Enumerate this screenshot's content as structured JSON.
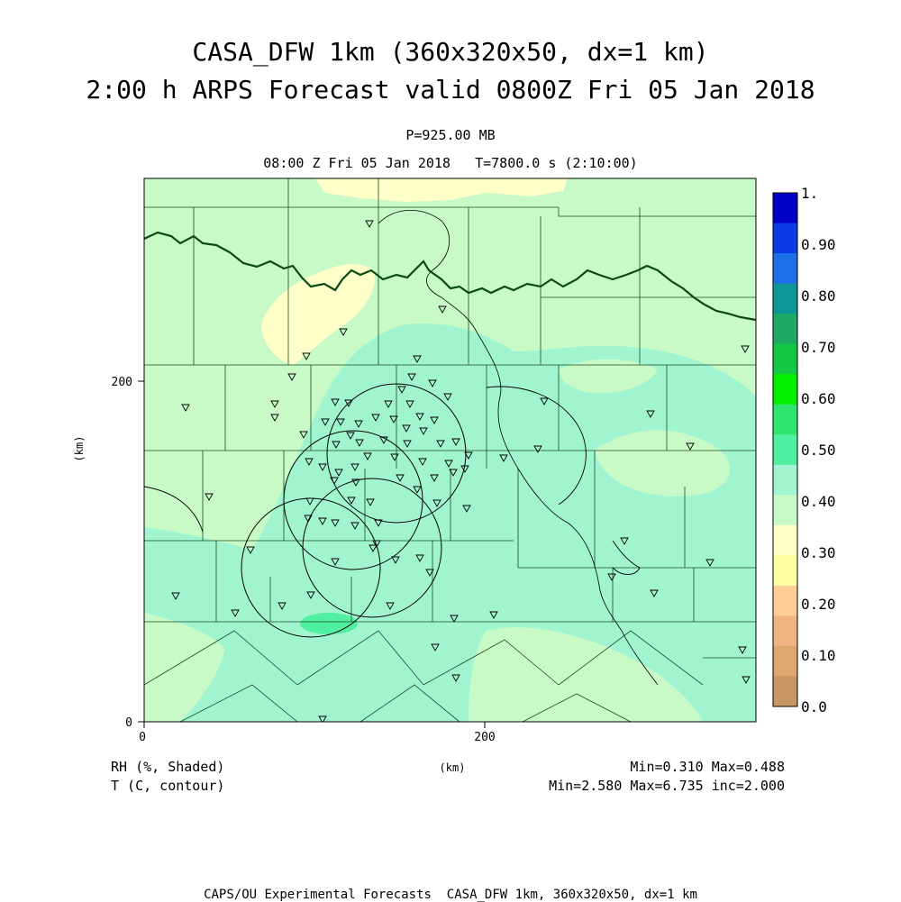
{
  "title": {
    "line1": "CASA_DFW 1km (360x320x50, dx=1 km)",
    "line2": "2:00 h ARPS Forecast valid 0800Z Fri 05 Jan 2018"
  },
  "subtitle": {
    "level": "P=925.00 MB",
    "time": "08:00 Z Fri 05 Jan 2018   T=7800.0 s (2:10:00)"
  },
  "axes": {
    "x_ticks": [
      "0",
      "200"
    ],
    "y_ticks": [
      "0",
      "200"
    ],
    "x_label": "(km)",
    "y_label": "(km)"
  },
  "legend": {
    "labels": [
      "1.",
      "0.90",
      "0.80",
      "0.70",
      "0.60",
      "0.50",
      "0.40",
      "0.30",
      "0.20",
      "0.10",
      "0.0"
    ],
    "colors": [
      "#0000c8",
      "#0a3ce6",
      "#1e6ee6",
      "#0f9696",
      "#1eaa64",
      "#14c846",
      "#00f000",
      "#2ee66e",
      "#50f0a0",
      "#a0f5d0",
      "#c8fac8",
      "#ffffc8",
      "#ffffa0",
      "#ffcc96",
      "#f0b482",
      "#dca86e",
      "#c89664"
    ]
  },
  "field_info": {
    "shaded": "RH (%, Shaded)",
    "contour": "T (C, contour)",
    "shaded_range": "Min=0.310 Max=0.488",
    "contour_range": "Min=2.580 Max=6.735 inc=2.000"
  },
  "footer": "CAPS/OU Experimental Forecasts  CASA_DFW 1km, 360x320x50, dx=1 km",
  "colors": {
    "rh_030_040": "#c8fac8",
    "rh_040_050": "#a0f5d0",
    "rh_020_030": "#ffffc8",
    "county_lines": "#1e4a1e"
  }
}
